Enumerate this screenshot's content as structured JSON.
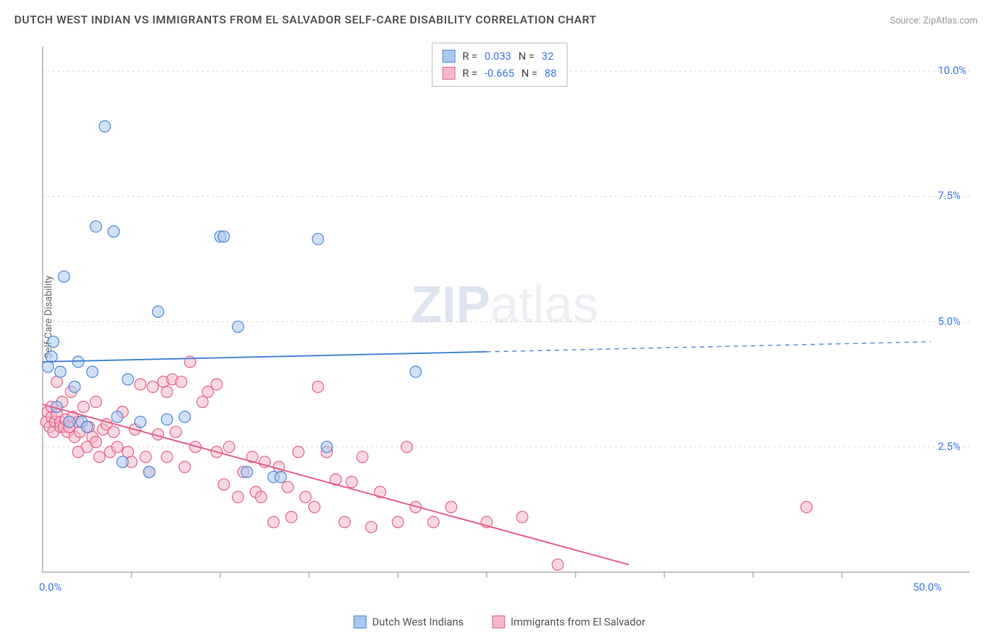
{
  "title": "DUTCH WEST INDIAN VS IMMIGRANTS FROM EL SALVADOR SELF-CARE DISABILITY CORRELATION CHART",
  "source": "Source: ZipAtlas.com",
  "ylabel": "Self-Care Disability",
  "watermark_a": "ZIP",
  "watermark_b": "atlas",
  "chart": {
    "type": "scatter",
    "xlim": [
      0,
      50
    ],
    "ylim": [
      0,
      10.5
    ],
    "xtick_step": 5,
    "ytick_step": 2.5,
    "xtick_labels": [
      "0.0%",
      "50.0%"
    ],
    "ytick_labels": [
      "2.5%",
      "5.0%",
      "7.5%",
      "10.0%"
    ],
    "background_color": "#ffffff",
    "grid_color": "#d8d8d8",
    "axis_color": "#888888",
    "tick_color": "#888888",
    "label_color": "#3b78e7",
    "marker_radius": 8,
    "marker_stroke_width": 1.2,
    "trend_line_width": 2,
    "series": [
      {
        "name": "Dutch West Indians",
        "fill": "#a9c8f0",
        "stroke": "#4a86d6",
        "fill_opacity": 0.55,
        "R": "0.033",
        "N": "32",
        "trend": {
          "x1": 0,
          "y1": 4.2,
          "x2": 25,
          "y2": 4.4,
          "ext_x2": 50,
          "ext_y2": 4.6
        },
        "points": [
          [
            0.3,
            4.1
          ],
          [
            0.5,
            4.3
          ],
          [
            0.6,
            4.6
          ],
          [
            0.8,
            3.3
          ],
          [
            1.0,
            4.0
          ],
          [
            1.2,
            5.9
          ],
          [
            1.5,
            3.0
          ],
          [
            1.8,
            3.7
          ],
          [
            2.0,
            4.2
          ],
          [
            2.2,
            3.0
          ],
          [
            2.5,
            2.9
          ],
          [
            2.8,
            4.0
          ],
          [
            3.0,
            6.9
          ],
          [
            3.5,
            8.9
          ],
          [
            4.0,
            6.8
          ],
          [
            4.2,
            3.1
          ],
          [
            4.5,
            2.2
          ],
          [
            4.8,
            3.85
          ],
          [
            5.5,
            3.0
          ],
          [
            6.0,
            2.0
          ],
          [
            6.5,
            5.2
          ],
          [
            7.0,
            3.05
          ],
          [
            8.0,
            3.1
          ],
          [
            10.0,
            6.7
          ],
          [
            10.2,
            6.7
          ],
          [
            11.0,
            4.9
          ],
          [
            11.5,
            2.0
          ],
          [
            13.0,
            1.9
          ],
          [
            15.5,
            6.65
          ],
          [
            16.0,
            2.5
          ],
          [
            21.0,
            4.0
          ],
          [
            13.4,
            1.9
          ]
        ]
      },
      {
        "name": "Immigrants from El Salvador",
        "fill": "#f5b8c8",
        "stroke": "#e65f87",
        "fill_opacity": 0.55,
        "R": "-0.665",
        "N": "88",
        "trend": {
          "x1": 0,
          "y1": 3.35,
          "x2": 33,
          "y2": 0.15,
          "ext_x2": 33,
          "ext_y2": 0.15
        },
        "points": [
          [
            0.2,
            3.0
          ],
          [
            0.3,
            3.2
          ],
          [
            0.4,
            2.9
          ],
          [
            0.5,
            3.1
          ],
          [
            0.5,
            3.3
          ],
          [
            0.6,
            2.8
          ],
          [
            0.7,
            3.0
          ],
          [
            0.8,
            3.8
          ],
          [
            0.8,
            3.15
          ],
          [
            1.0,
            3.0
          ],
          [
            1.0,
            2.9
          ],
          [
            1.1,
            3.4
          ],
          [
            1.2,
            2.9
          ],
          [
            1.3,
            3.05
          ],
          [
            1.4,
            2.8
          ],
          [
            1.5,
            2.9
          ],
          [
            1.6,
            3.6
          ],
          [
            1.7,
            3.1
          ],
          [
            1.8,
            2.7
          ],
          [
            2.0,
            3.0
          ],
          [
            2.0,
            2.4
          ],
          [
            2.1,
            2.8
          ],
          [
            2.3,
            3.3
          ],
          [
            2.5,
            2.5
          ],
          [
            2.6,
            2.9
          ],
          [
            2.8,
            2.7
          ],
          [
            3.0,
            2.6
          ],
          [
            3.0,
            3.4
          ],
          [
            3.2,
            2.3
          ],
          [
            3.4,
            2.85
          ],
          [
            3.6,
            2.95
          ],
          [
            3.8,
            2.4
          ],
          [
            4.0,
            2.8
          ],
          [
            4.2,
            2.5
          ],
          [
            4.5,
            3.2
          ],
          [
            4.8,
            2.4
          ],
          [
            5.0,
            2.2
          ],
          [
            5.2,
            2.85
          ],
          [
            5.5,
            3.75
          ],
          [
            5.8,
            2.3
          ],
          [
            6.0,
            2.0
          ],
          [
            6.2,
            3.7
          ],
          [
            6.5,
            2.75
          ],
          [
            6.8,
            3.8
          ],
          [
            7.0,
            2.3
          ],
          [
            7.0,
            3.6
          ],
          [
            7.3,
            3.85
          ],
          [
            7.5,
            2.8
          ],
          [
            7.8,
            3.8
          ],
          [
            8.0,
            2.1
          ],
          [
            8.3,
            4.2
          ],
          [
            8.6,
            2.5
          ],
          [
            9.0,
            3.4
          ],
          [
            9.3,
            3.6
          ],
          [
            9.8,
            2.4
          ],
          [
            9.8,
            3.75
          ],
          [
            10.2,
            1.75
          ],
          [
            10.5,
            2.5
          ],
          [
            11.0,
            1.5
          ],
          [
            11.3,
            2.0
          ],
          [
            11.8,
            2.3
          ],
          [
            12.0,
            1.6
          ],
          [
            12.3,
            1.5
          ],
          [
            12.5,
            2.2
          ],
          [
            13.0,
            1.0
          ],
          [
            13.3,
            2.1
          ],
          [
            13.8,
            1.7
          ],
          [
            14.0,
            1.1
          ],
          [
            14.4,
            2.4
          ],
          [
            14.8,
            1.5
          ],
          [
            15.3,
            1.3
          ],
          [
            15.5,
            3.7
          ],
          [
            16.0,
            2.4
          ],
          [
            16.5,
            1.85
          ],
          [
            17.0,
            1.0
          ],
          [
            17.4,
            1.8
          ],
          [
            18.0,
            2.3
          ],
          [
            18.5,
            0.9
          ],
          [
            19.0,
            1.6
          ],
          [
            20.0,
            1.0
          ],
          [
            20.5,
            2.5
          ],
          [
            21.0,
            1.3
          ],
          [
            22.0,
            1.0
          ],
          [
            23.0,
            1.3
          ],
          [
            25.0,
            1.0
          ],
          [
            27.0,
            1.1
          ],
          [
            29.0,
            0.15
          ],
          [
            43.0,
            1.3
          ]
        ]
      }
    ]
  },
  "legend_top": {
    "R_label": "R =",
    "N_label": "N ="
  },
  "legend_bottom": {
    "a": "Dutch West Indians",
    "b": "Immigrants from El Salvador"
  }
}
